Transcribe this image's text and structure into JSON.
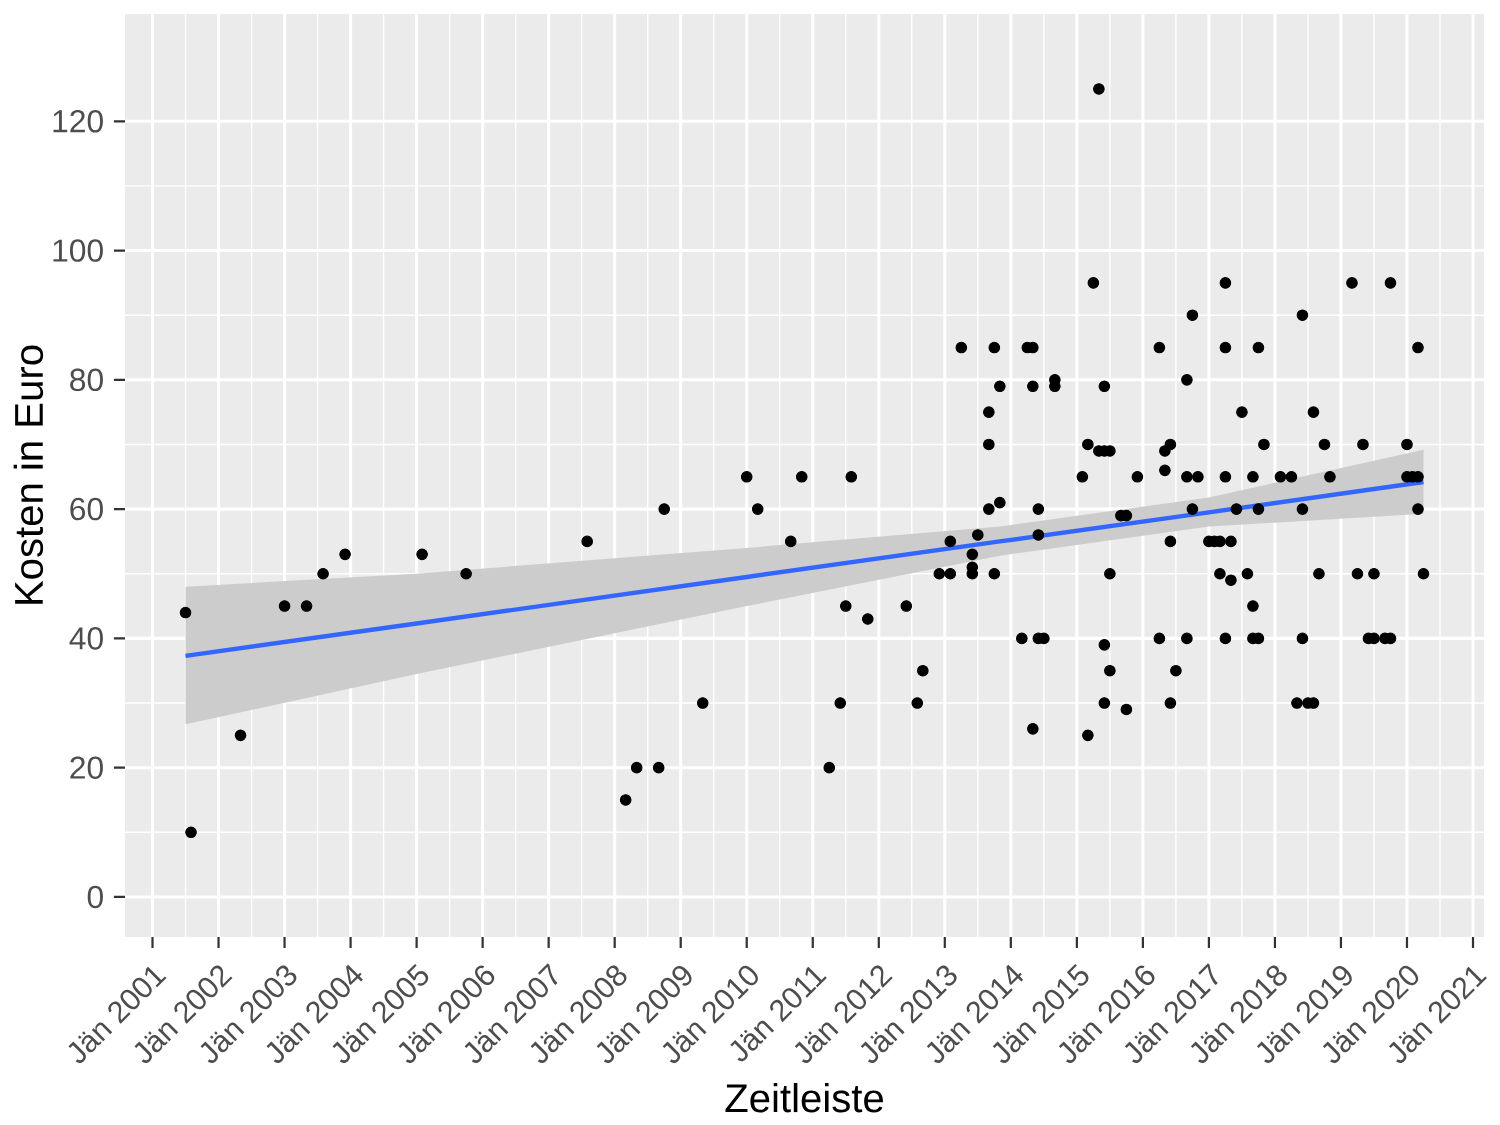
{
  "chart_data": {
    "type": "scatter",
    "xlabel": "Zeitleiste",
    "ylabel": "Kosten in Euro",
    "xlim": [
      "2000-08",
      "2021-03"
    ],
    "ylim": [
      -6.2,
      136.6
    ],
    "xticks": [
      {
        "value": "2001-01",
        "label": "Jän 2001"
      },
      {
        "value": "2002-01",
        "label": "Jän 2002"
      },
      {
        "value": "2003-01",
        "label": "Jän 2003"
      },
      {
        "value": "2004-01",
        "label": "Jän 2004"
      },
      {
        "value": "2005-01",
        "label": "Jän 2005"
      },
      {
        "value": "2006-01",
        "label": "Jän 2006"
      },
      {
        "value": "2007-01",
        "label": "Jän 2007"
      },
      {
        "value": "2008-01",
        "label": "Jän 2008"
      },
      {
        "value": "2009-01",
        "label": "Jän 2009"
      },
      {
        "value": "2010-01",
        "label": "Jän 2010"
      },
      {
        "value": "2011-01",
        "label": "Jän 2011"
      },
      {
        "value": "2012-01",
        "label": "Jän 2012"
      },
      {
        "value": "2013-01",
        "label": "Jän 2013"
      },
      {
        "value": "2014-01",
        "label": "Jän 2014"
      },
      {
        "value": "2015-01",
        "label": "Jän 2015"
      },
      {
        "value": "2016-01",
        "label": "Jän 2016"
      },
      {
        "value": "2017-01",
        "label": "Jän 2017"
      },
      {
        "value": "2018-01",
        "label": "Jän 2018"
      },
      {
        "value": "2019-01",
        "label": "Jän 2019"
      },
      {
        "value": "2020-01",
        "label": "Jän 2020"
      },
      {
        "value": "2021-01",
        "label": "Jän 2021"
      }
    ],
    "yticks": [
      0,
      20,
      40,
      60,
      80,
      100,
      120
    ],
    "grid": true,
    "series": [
      {
        "color": "#000000",
        "marker": "circle",
        "x": [
          "2001-07",
          "2001-08",
          "2002-05",
          "2003-01",
          "2003-05",
          "2003-08",
          "2003-12",
          "2005-02",
          "2005-10",
          "2007-08",
          "2008-03",
          "2008-05",
          "2008-09",
          "2008-10",
          "2009-05",
          "2010-01",
          "2010-03",
          "2010-09",
          "2010-11",
          "2011-04",
          "2011-06",
          "2011-07",
          "2011-08",
          "2011-11",
          "2012-06",
          "2012-08",
          "2012-09",
          "2012-12",
          "2013-02",
          "2013-02",
          "2013-04",
          "2013-06",
          "2013-06",
          "2013-06",
          "2013-07",
          "2013-09",
          "2013-09",
          "2013-09",
          "2013-10",
          "2013-10",
          "2013-11",
          "2013-11",
          "2014-03",
          "2014-04",
          "2014-05",
          "2014-05",
          "2014-05",
          "2014-06",
          "2014-06",
          "2014-06",
          "2014-07",
          "2014-09",
          "2014-09",
          "2015-02",
          "2015-03",
          "2015-03",
          "2015-04",
          "2015-05",
          "2015-05",
          "2015-06",
          "2015-06",
          "2015-06",
          "2015-06",
          "2015-07",
          "2015-07",
          "2015-07",
          "2015-09",
          "2015-10",
          "2015-10",
          "2015-12",
          "2016-04",
          "2016-04",
          "2016-05",
          "2016-05",
          "2016-06",
          "2016-06",
          "2016-06",
          "2016-07",
          "2016-09",
          "2016-09",
          "2016-09",
          "2016-10",
          "2016-10",
          "2016-11",
          "2017-01",
          "2017-02",
          "2017-03",
          "2017-03",
          "2017-04",
          "2017-04",
          "2017-04",
          "2017-04",
          "2017-05",
          "2017-05",
          "2017-06",
          "2017-07",
          "2017-08",
          "2017-09",
          "2017-09",
          "2017-09",
          "2017-10",
          "2017-10",
          "2017-10",
          "2017-11",
          "2018-02",
          "2018-04",
          "2018-05",
          "2018-06",
          "2018-06",
          "2018-06",
          "2018-07",
          "2018-08",
          "2018-08",
          "2018-09",
          "2018-10",
          "2018-11",
          "2019-03",
          "2019-04",
          "2019-05",
          "2019-06",
          "2019-07",
          "2019-07",
          "2019-09",
          "2019-10",
          "2019-10",
          "2020-01",
          "2020-01",
          "2020-02",
          "2020-03",
          "2020-03",
          "2020-03",
          "2020-04"
        ],
        "values": [
          44,
          10,
          25,
          45,
          45,
          50,
          53,
          53,
          50,
          55,
          15,
          20,
          20,
          60,
          30,
          65,
          60,
          55,
          65,
          20,
          30,
          45,
          65,
          43,
          45,
          30,
          35,
          50,
          50,
          55,
          85,
          50,
          51,
          53,
          56,
          60,
          70,
          75,
          50,
          85,
          61,
          79,
          40,
          85,
          85,
          26,
          79,
          40,
          56,
          60,
          40,
          79,
          80,
          65,
          25,
          70,
          95,
          69,
          125,
          30,
          39,
          69,
          79,
          35,
          50,
          69,
          59,
          29,
          59,
          65,
          40,
          85,
          66,
          69,
          30,
          55,
          70,
          35,
          40,
          65,
          80,
          60,
          90,
          65,
          55,
          55,
          55,
          50,
          40,
          65,
          85,
          95,
          49,
          55,
          60,
          75,
          50,
          40,
          45,
          65,
          40,
          60,
          85,
          70,
          65,
          65,
          30,
          40,
          60,
          90,
          30,
          30,
          75,
          50,
          70,
          65,
          95,
          50,
          70,
          40,
          40,
          50,
          40,
          40,
          95,
          65,
          70,
          65,
          65,
          60,
          85,
          50
        ]
      },
      {
        "type": "line",
        "color": "#3366ff",
        "marker": "none",
        "x": [
          "2001-07",
          "2005-01",
          "2010-01",
          "2013-11",
          "2017-01",
          "2020-04"
        ],
        "values": [
          37.3,
          42.3,
          49.5,
          55,
          59.5,
          64.2
        ],
        "lower": [
          26.7,
          34.5,
          45,
          52.8,
          57.3,
          59.3
        ],
        "upper": [
          48,
          50,
          54,
          57.3,
          61.8,
          69.2
        ]
      }
    ]
  }
}
